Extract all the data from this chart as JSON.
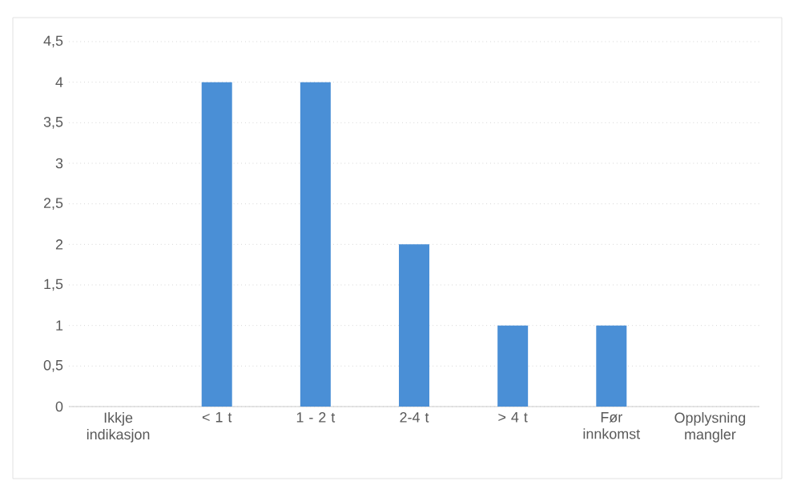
{
  "chart_data": {
    "type": "bar",
    "categories": [
      "Ikkje indikasjon",
      "< 1 t",
      "1 - 2 t",
      "2-4 t",
      "> 4 t",
      "Før innkomst",
      "Opplysning mangler"
    ],
    "values": [
      0,
      4,
      4,
      2,
      1,
      1,
      0
    ],
    "color": "#4a8fd6",
    "ylim": [
      0,
      4.5
    ],
    "yticks": [
      0,
      {
        "value": 0.5,
        "label": "0,5"
      },
      1,
      {
        "value": 1.5,
        "label": "1,5"
      },
      2,
      {
        "value": 2.5,
        "label": "2,5"
      },
      3,
      {
        "value": 3.5,
        "label": "3,5"
      },
      4,
      {
        "value": 4.5,
        "label": "4,5"
      }
    ],
    "grid": "y"
  }
}
